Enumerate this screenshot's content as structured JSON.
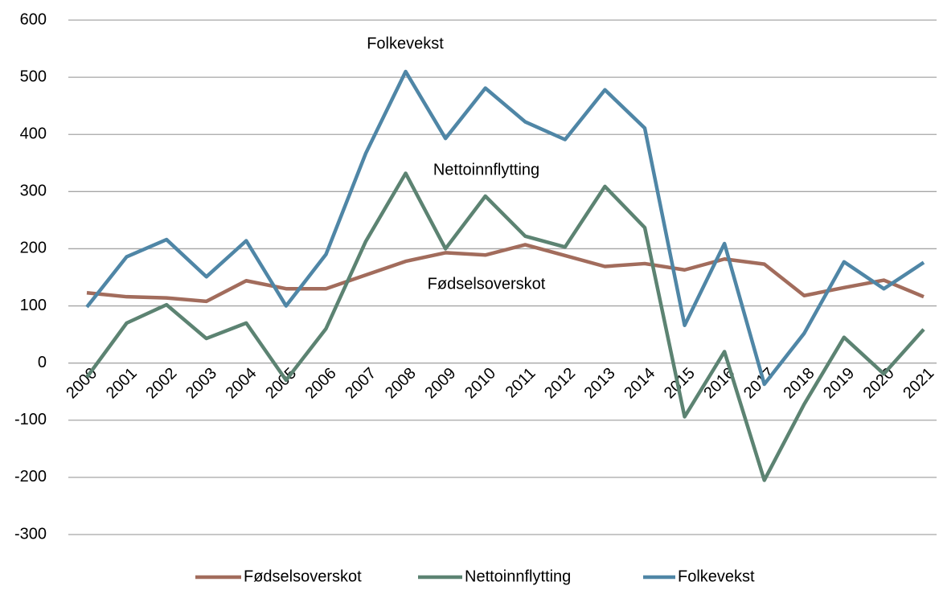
{
  "chart_data": {
    "type": "line",
    "categories": [
      "2000",
      "2001",
      "2002",
      "2003",
      "2004",
      "2005",
      "2006",
      "2007",
      "2008",
      "2009",
      "2010",
      "2011",
      "2012",
      "2013",
      "2014",
      "2015",
      "2016",
      "2017",
      "2018",
      "2019",
      "2020",
      "2021"
    ],
    "series": [
      {
        "name": "Fødselsoverskot",
        "color": "#a26c5c",
        "values": [
          123,
          116,
          114,
          108,
          144,
          130,
          130,
          154,
          178,
          193,
          189,
          207,
          188,
          169,
          174,
          163,
          182,
          173,
          118,
          132,
          145,
          116
        ]
      },
      {
        "name": "Nettoinnflytting",
        "color": "#5c8372",
        "values": [
          -25,
          70,
          102,
          43,
          70,
          -30,
          60,
          213,
          332,
          200,
          292,
          222,
          203,
          309,
          237,
          -94,
          20,
          -205,
          -72,
          45,
          -19,
          59
        ]
      },
      {
        "name": "Folkevekst",
        "color": "#4f86a6",
        "values": [
          98,
          186,
          216,
          151,
          214,
          100,
          190,
          367,
          510,
          393,
          481,
          422,
          391,
          478,
          411,
          66,
          209,
          -37,
          52,
          177,
          130,
          176
        ]
      }
    ],
    "annotations": [
      "Folkevekst",
      "Nettoinnflytting",
      "Fødselsoverskot"
    ],
    "ylim": [
      -300,
      600
    ],
    "yticks": [
      -300,
      -200,
      -100,
      0,
      100,
      200,
      300,
      400,
      500,
      600
    ],
    "grid": true,
    "legend": "bottom"
  }
}
